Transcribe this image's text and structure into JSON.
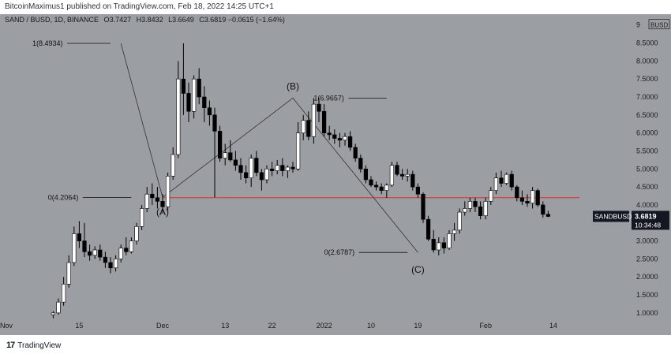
{
  "topbar": {
    "text": "BitcoinMaximus1 published on TradingView.com, Feb 18, 2022 14:25 UTC+1"
  },
  "header": {
    "symbol": "SAND / BUSD, 1D, BINANCE",
    "o_label": "O",
    "o_value": "3.7427",
    "h_label": "H",
    "h_value": "3.8432",
    "l_label": "L",
    "l_value": "3.6649",
    "c_label": "C",
    "c_value": "3.6819",
    "change": "−0.0615 (−1.64%)"
  },
  "footer": {
    "brand": "TradingView"
  },
  "colors": {
    "background": "#9b9ea3",
    "bull_body": "#ffffff",
    "bear_body": "#000000",
    "wick": "#000000",
    "support_line": "#e0302f",
    "wave_line": "#333333",
    "price_tag_bg": "#131722",
    "price_tag_text": "#ffffff"
  },
  "chart_data": {
    "type": "candlestick",
    "currency_label": "BUSD",
    "y_ticks": [
      1.0,
      1.5,
      2.0,
      2.5,
      3.0,
      3.5,
      4.0,
      4.5,
      5.0,
      5.5,
      6.0,
      6.5,
      7.0,
      7.5,
      8.0,
      8.5,
      9.0
    ],
    "y_tick_labels": [
      "1.0000",
      "1.5000",
      "2.0000",
      "2.5000",
      "3.0000",
      "3.5000",
      "4.0000",
      "4.5000",
      "5.0000",
      "5.5000",
      "6.0000",
      "6.5000",
      "7.0000",
      "7.5000",
      "8.0000",
      "8.5000",
      "9"
    ],
    "ylim": [
      0.8,
      9.3
    ],
    "x_labels": [
      {
        "day": 0,
        "label": "Nov"
      },
      {
        "day": 14,
        "label": "15"
      },
      {
        "day": 30,
        "label": "Dec"
      },
      {
        "day": 42,
        "label": "13"
      },
      {
        "day": 51,
        "label": "22"
      },
      {
        "day": 61,
        "label": "2022"
      },
      {
        "day": 70,
        "label": "10"
      },
      {
        "day": 79,
        "label": "19"
      },
      {
        "day": 92,
        "label": "Feb"
      },
      {
        "day": 105,
        "label": "14"
      }
    ],
    "current_price": {
      "label": "SANDBUSD",
      "value": "3.6819",
      "timer": "10:34:48"
    },
    "support_level": 4.2,
    "support_span": [
      30,
      110
    ],
    "wave_points": [
      {
        "day": 22,
        "price": 8.49
      },
      {
        "day": 30,
        "price": 4.21
      },
      {
        "day": 55,
        "price": 6.97
      },
      {
        "day": 79,
        "price": 2.68
      }
    ],
    "wave_labels": [
      {
        "text": "(A)",
        "day": 30,
        "price": 3.8
      },
      {
        "day": 55,
        "text": "(B)",
        "price": 7.3
      },
      {
        "day": 79,
        "text": "(C)",
        "price": 2.2
      }
    ],
    "fib_labels": [
      {
        "text": "1(8.4934)",
        "price": 8.49,
        "day_start": 5,
        "day_end": 20
      },
      {
        "text": "0(4.2064)",
        "price": 4.21,
        "day_start": 8,
        "day_end": 24
      },
      {
        "text": "1(6.9657)",
        "price": 6.97,
        "day_start": 59,
        "day_end": 73
      },
      {
        "text": "0(2.6787)",
        "price": 2.68,
        "day_start": 61,
        "day_end": 77
      }
    ],
    "candles": [
      {
        "o": 0.95,
        "h": 1.05,
        "l": 0.85,
        "c": 1.0
      },
      {
        "o": 1.0,
        "h": 1.4,
        "l": 0.95,
        "c": 1.3
      },
      {
        "o": 1.3,
        "h": 2.0,
        "l": 1.2,
        "c": 1.8
      },
      {
        "o": 1.8,
        "h": 2.6,
        "l": 1.7,
        "c": 2.4
      },
      {
        "o": 2.4,
        "h": 3.4,
        "l": 2.3,
        "c": 3.2
      },
      {
        "o": 3.2,
        "h": 3.55,
        "l": 2.8,
        "c": 3.0
      },
      {
        "o": 3.0,
        "h": 3.5,
        "l": 2.55,
        "c": 2.7
      },
      {
        "o": 2.7,
        "h": 2.9,
        "l": 2.45,
        "c": 2.6
      },
      {
        "o": 2.6,
        "h": 2.85,
        "l": 2.5,
        "c": 2.75
      },
      {
        "o": 2.75,
        "h": 2.9,
        "l": 2.45,
        "c": 2.55
      },
      {
        "o": 2.55,
        "h": 2.7,
        "l": 2.25,
        "c": 2.4
      },
      {
        "o": 2.4,
        "h": 2.55,
        "l": 2.1,
        "c": 2.25
      },
      {
        "o": 2.25,
        "h": 2.6,
        "l": 2.15,
        "c": 2.5
      },
      {
        "o": 2.5,
        "h": 2.9,
        "l": 2.4,
        "c": 2.8
      },
      {
        "o": 2.8,
        "h": 3.1,
        "l": 2.6,
        "c": 2.7
      },
      {
        "o": 2.7,
        "h": 3.1,
        "l": 2.65,
        "c": 3.0
      },
      {
        "o": 3.0,
        "h": 3.5,
        "l": 2.9,
        "c": 3.4
      },
      {
        "o": 3.4,
        "h": 4.0,
        "l": 3.3,
        "c": 3.9
      },
      {
        "o": 3.9,
        "h": 4.5,
        "l": 3.8,
        "c": 4.3
      },
      {
        "o": 4.3,
        "h": 4.6,
        "l": 4.0,
        "c": 4.2
      },
      {
        "o": 4.2,
        "h": 4.5,
        "l": 3.9,
        "c": 4.1
      },
      {
        "o": 4.1,
        "h": 4.3,
        "l": 3.8,
        "c": 3.95
      },
      {
        "o": 3.95,
        "h": 4.9,
        "l": 3.85,
        "c": 4.8
      },
      {
        "o": 4.8,
        "h": 5.6,
        "l": 4.7,
        "c": 5.4
      },
      {
        "o": 5.4,
        "h": 8.0,
        "l": 5.3,
        "c": 7.5
      },
      {
        "o": 7.5,
        "h": 8.49,
        "l": 6.5,
        "c": 7.1
      },
      {
        "o": 7.1,
        "h": 7.4,
        "l": 6.3,
        "c": 6.6
      },
      {
        "o": 6.6,
        "h": 7.6,
        "l": 6.4,
        "c": 7.5
      },
      {
        "o": 7.5,
        "h": 7.8,
        "l": 6.8,
        "c": 7.0
      },
      {
        "o": 7.0,
        "h": 7.3,
        "l": 6.3,
        "c": 6.7
      },
      {
        "o": 6.7,
        "h": 6.9,
        "l": 6.2,
        "c": 6.5
      },
      {
        "o": 6.5,
        "h": 6.7,
        "l": 4.21,
        "c": 6.05
      },
      {
        "o": 6.05,
        "h": 6.2,
        "l": 5.2,
        "c": 5.3
      },
      {
        "o": 5.3,
        "h": 5.7,
        "l": 5.1,
        "c": 5.45
      },
      {
        "o": 5.45,
        "h": 5.8,
        "l": 5.2,
        "c": 5.25
      },
      {
        "o": 5.25,
        "h": 5.5,
        "l": 4.95,
        "c": 5.1
      },
      {
        "o": 5.1,
        "h": 5.3,
        "l": 4.7,
        "c": 4.9
      },
      {
        "o": 4.9,
        "h": 5.1,
        "l": 4.6,
        "c": 4.75
      },
      {
        "o": 4.75,
        "h": 5.4,
        "l": 4.5,
        "c": 5.3
      },
      {
        "o": 5.3,
        "h": 5.5,
        "l": 4.8,
        "c": 4.9
      },
      {
        "o": 4.9,
        "h": 5.0,
        "l": 4.4,
        "c": 4.7
      },
      {
        "o": 4.7,
        "h": 5.1,
        "l": 4.6,
        "c": 5.0
      },
      {
        "o": 5.0,
        "h": 5.2,
        "l": 4.8,
        "c": 4.95
      },
      {
        "o": 4.95,
        "h": 5.25,
        "l": 4.85,
        "c": 5.1
      },
      {
        "o": 5.1,
        "h": 5.3,
        "l": 4.8,
        "c": 4.95
      },
      {
        "o": 4.95,
        "h": 5.1,
        "l": 4.75,
        "c": 5.05
      },
      {
        "o": 5.05,
        "h": 5.2,
        "l": 4.9,
        "c": 5.0
      },
      {
        "o": 5.0,
        "h": 6.3,
        "l": 4.95,
        "c": 6.0
      },
      {
        "o": 6.0,
        "h": 6.5,
        "l": 5.8,
        "c": 6.35
      },
      {
        "o": 6.35,
        "h": 6.6,
        "l": 5.8,
        "c": 5.9
      },
      {
        "o": 5.9,
        "h": 6.97,
        "l": 5.7,
        "c": 6.8
      },
      {
        "o": 6.8,
        "h": 6.97,
        "l": 6.3,
        "c": 6.6
      },
      {
        "o": 6.6,
        "h": 6.8,
        "l": 5.9,
        "c": 6.0
      },
      {
        "o": 6.0,
        "h": 6.2,
        "l": 5.8,
        "c": 5.95
      },
      {
        "o": 5.95,
        "h": 6.1,
        "l": 5.7,
        "c": 5.85
      },
      {
        "o": 5.85,
        "h": 6.0,
        "l": 5.6,
        "c": 5.8
      },
      {
        "o": 5.8,
        "h": 6.0,
        "l": 5.65,
        "c": 5.9
      },
      {
        "o": 5.9,
        "h": 6.05,
        "l": 5.5,
        "c": 5.6
      },
      {
        "o": 5.6,
        "h": 5.7,
        "l": 5.2,
        "c": 5.3
      },
      {
        "o": 5.3,
        "h": 5.4,
        "l": 4.9,
        "c": 5.0
      },
      {
        "o": 5.0,
        "h": 5.1,
        "l": 4.6,
        "c": 4.7
      },
      {
        "o": 4.7,
        "h": 4.8,
        "l": 4.5,
        "c": 4.55
      },
      {
        "o": 4.55,
        "h": 4.65,
        "l": 4.4,
        "c": 4.5
      },
      {
        "o": 4.5,
        "h": 4.6,
        "l": 4.3,
        "c": 4.4
      },
      {
        "o": 4.4,
        "h": 4.6,
        "l": 4.2,
        "c": 4.55
      },
      {
        "o": 4.55,
        "h": 5.2,
        "l": 4.5,
        "c": 5.1
      },
      {
        "o": 5.1,
        "h": 5.2,
        "l": 4.8,
        "c": 4.85
      },
      {
        "o": 4.85,
        "h": 5.0,
        "l": 4.7,
        "c": 4.8
      },
      {
        "o": 4.8,
        "h": 5.0,
        "l": 4.65,
        "c": 4.85
      },
      {
        "o": 4.85,
        "h": 4.95,
        "l": 4.4,
        "c": 4.5
      },
      {
        "o": 4.5,
        "h": 4.6,
        "l": 4.2,
        "c": 4.3
      },
      {
        "o": 4.3,
        "h": 4.35,
        "l": 3.5,
        "c": 3.6
      },
      {
        "o": 3.6,
        "h": 3.7,
        "l": 3.0,
        "c": 3.05
      },
      {
        "o": 3.05,
        "h": 3.3,
        "l": 2.68,
        "c": 2.75
      },
      {
        "o": 2.75,
        "h": 3.1,
        "l": 2.6,
        "c": 2.95
      },
      {
        "o": 2.95,
        "h": 3.1,
        "l": 2.65,
        "c": 2.8
      },
      {
        "o": 2.8,
        "h": 3.3,
        "l": 2.75,
        "c": 3.2
      },
      {
        "o": 3.2,
        "h": 3.5,
        "l": 3.0,
        "c": 3.3
      },
      {
        "o": 3.3,
        "h": 3.9,
        "l": 3.2,
        "c": 3.8
      },
      {
        "o": 3.8,
        "h": 4.1,
        "l": 3.7,
        "c": 3.9
      },
      {
        "o": 3.9,
        "h": 4.2,
        "l": 3.8,
        "c": 4.1
      },
      {
        "o": 4.1,
        "h": 4.2,
        "l": 3.8,
        "c": 3.95
      },
      {
        "o": 3.95,
        "h": 4.1,
        "l": 3.6,
        "c": 3.7
      },
      {
        "o": 3.7,
        "h": 4.2,
        "l": 3.6,
        "c": 4.1
      },
      {
        "o": 4.1,
        "h": 4.5,
        "l": 4.0,
        "c": 4.4
      },
      {
        "o": 4.4,
        "h": 4.9,
        "l": 4.3,
        "c": 4.75
      },
      {
        "o": 4.75,
        "h": 4.95,
        "l": 4.5,
        "c": 4.6
      },
      {
        "o": 4.6,
        "h": 4.9,
        "l": 4.55,
        "c": 4.85
      },
      {
        "o": 4.85,
        "h": 4.95,
        "l": 4.4,
        "c": 4.5
      },
      {
        "o": 4.5,
        "h": 4.55,
        "l": 4.1,
        "c": 4.2
      },
      {
        "o": 4.2,
        "h": 4.4,
        "l": 4.0,
        "c": 4.1
      },
      {
        "o": 4.1,
        "h": 4.3,
        "l": 3.95,
        "c": 4.05
      },
      {
        "o": 4.05,
        "h": 4.5,
        "l": 3.9,
        "c": 4.4
      },
      {
        "o": 4.4,
        "h": 4.45,
        "l": 3.95,
        "c": 4.0
      },
      {
        "o": 4.0,
        "h": 4.1,
        "l": 3.65,
        "c": 3.74
      },
      {
        "o": 3.74,
        "h": 3.84,
        "l": 3.66,
        "c": 3.68
      }
    ],
    "candles_first_day": 9
  }
}
